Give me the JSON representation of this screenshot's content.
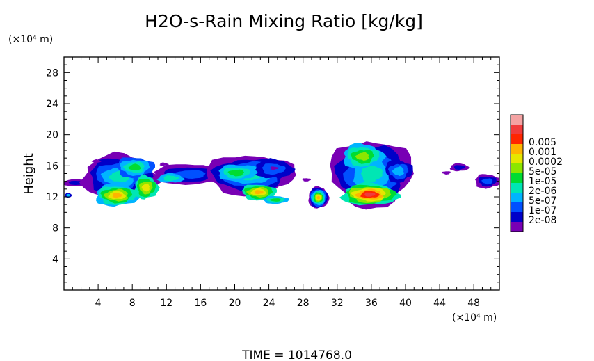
{
  "chart_data": {
    "type": "heatmap",
    "title": "H2O-s-Rain Mixing Ratio [kg/kg]",
    "x_unit": "(×10⁴ m)",
    "y_unit": "(×10⁴ m)",
    "ylabel": "Height",
    "xlabel": "",
    "xlim": [
      0,
      51
    ],
    "ylim": [
      0,
      30
    ],
    "x_ticks": [
      "4",
      "8",
      "12",
      "16",
      "20",
      "24",
      "28",
      "32",
      "36",
      "40",
      "44",
      "48"
    ],
    "y_ticks": [
      "4",
      "8",
      "12",
      "16",
      "20",
      "24",
      "28"
    ],
    "time_text": "TIME = 1014768.0",
    "colorbar": {
      "levels": [
        "0.005",
        "0.001",
        "0.0002",
        "5e-05",
        "1e-05",
        "2e-06",
        "5e-07",
        "1e-07",
        "2e-08"
      ],
      "colors": [
        "#f4a3a3",
        "#f03c3c",
        "#ff2600",
        "#ffb400",
        "#e6e600",
        "#8ce600",
        "#00dc32",
        "#00e6b4",
        "#00b4ff",
        "#0050ff",
        "#0000c8",
        "#7800b4"
      ]
    },
    "cloud_features": [
      {
        "name": "left-edge-streak",
        "x": [
          0,
          3
        ],
        "y": [
          13.3,
          14.2
        ],
        "max_level": "2e-08"
      },
      {
        "name": "cell-1",
        "x": [
          3.5,
          12
        ],
        "y": [
          10.2,
          17.5
        ],
        "max_level": "0.0002"
      },
      {
        "name": "anvil-band",
        "x": [
          11,
          18
        ],
        "y": [
          13.2,
          16.8
        ],
        "max_level": "1e-07"
      },
      {
        "name": "cell-2",
        "x": [
          17.5,
          28
        ],
        "y": [
          11,
          17.8
        ],
        "max_level": "0.0002"
      },
      {
        "name": "cell-3",
        "x": [
          28.5,
          31
        ],
        "y": [
          10.5,
          13.3
        ],
        "max_level": "0.0002"
      },
      {
        "name": "cell-4",
        "x": [
          32,
          41.5
        ],
        "y": [
          10.5,
          19.7
        ],
        "max_level": "0.001"
      },
      {
        "name": "fragment-1",
        "x": [
          45,
          47.5
        ],
        "y": [
          15.2,
          16.3
        ],
        "max_level": "1e-07"
      },
      {
        "name": "fragment-2",
        "x": [
          48,
          51
        ],
        "y": [
          13,
          15
        ],
        "max_level": "1e-07"
      }
    ]
  }
}
